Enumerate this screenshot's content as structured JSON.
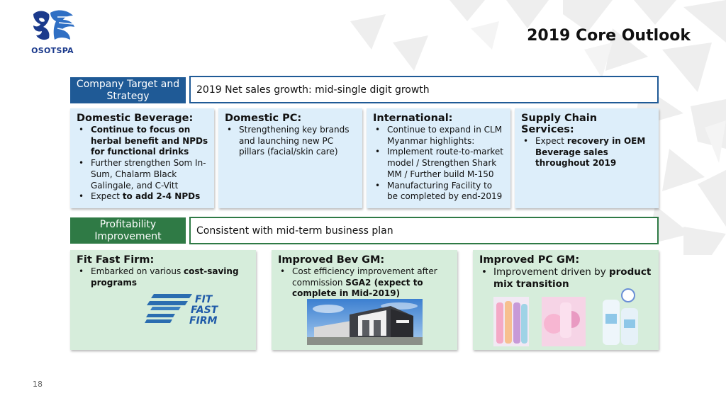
{
  "brand": {
    "logo_text": "OSOTSPA"
  },
  "slide": {
    "title": "2019 Core Outlook",
    "page_number": "18"
  },
  "company_target": {
    "label": "Company Target and Strategy",
    "statement": "2019 Net sales growth: mid-single digit growth"
  },
  "strategy_cards": [
    {
      "title": "Domestic Beverage:",
      "bullets": [
        [
          {
            "t": "Continue to focus on herbal benefit and NPDs for functional drinks",
            "b": true
          }
        ],
        [
          {
            "t": "Further strengthen Som In-Sum, Chalarm Black Galingale, and C-Vitt",
            "b": false
          }
        ],
        [
          {
            "t": "Expect ",
            "b": false
          },
          {
            "t": "to add 2-4 NPDs",
            "b": true
          }
        ]
      ]
    },
    {
      "title": "Domestic PC:",
      "bullets": [
        [
          {
            "t": "Strengthening key brands and launching new PC pillars (facial/skin care)",
            "b": false
          }
        ]
      ]
    },
    {
      "title": "International:",
      "bullets": [
        [
          {
            "t": "Continue to expand in CLM Myanmar highlights:",
            "b": false
          }
        ],
        [
          {
            "t": "Implement route-to-market model / Strengthen Shark MM / Further build M-150",
            "b": false
          }
        ],
        [
          {
            "t": "Manufacturing Facility to be completed by end-2019",
            "b": false
          }
        ]
      ]
    },
    {
      "title": "Supply Chain Services:",
      "bullets": [
        [
          {
            "t": "Expect ",
            "b": false
          },
          {
            "t": "recovery in OEM Beverage sales throughout 2019",
            "b": true
          }
        ]
      ]
    }
  ],
  "profitability": {
    "label": "Profitability Improvement",
    "statement": "Consistent with mid-term business plan"
  },
  "profit_cards": [
    {
      "title": "Fit Fast Firm:",
      "bullets": [
        [
          {
            "t": "Embarked on various ",
            "b": false
          },
          {
            "t": "cost-saving programs",
            "b": true
          }
        ]
      ]
    },
    {
      "title": "Improved Bev GM:",
      "bullets": [
        [
          {
            "t": "Cost efficiency improvement after commission ",
            "b": false
          },
          {
            "t": "SGA2 (expect to complete in Mid-2019)",
            "b": true
          }
        ]
      ]
    },
    {
      "title": "Improved PC GM:",
      "bullets": [
        [
          {
            "t": "Improvement driven by ",
            "b": false
          },
          {
            "t": "product mix transition",
            "b": true
          }
        ]
      ]
    }
  ],
  "fit_fast_firm_logo": {
    "line1": "FIT",
    "line2": "FAST",
    "line3": "FIRM"
  },
  "colors": {
    "blue_accent": "#1f5a96",
    "green_accent": "#2f7a45",
    "blue_card": "#ddeefa",
    "green_card": "#d6eddb"
  }
}
